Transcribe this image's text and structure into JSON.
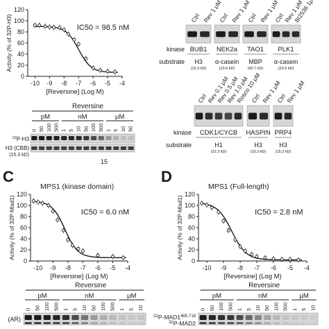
{
  "chart_data": [
    {
      "type": "scatter",
      "panel": "",
      "title": "",
      "ic50": "IC50 = 98.5 nM",
      "xlabel": "[Reversine] (Log M)",
      "ylabel": "Activity (% of 32P-H3)",
      "xlim": [
        -10.5,
        -4
      ],
      "ylim": [
        0,
        120
      ],
      "xticks": [
        -10,
        -9,
        -8,
        -7,
        -6,
        -5,
        -4
      ],
      "yticks": [
        0,
        20,
        40,
        60,
        80,
        100,
        120
      ],
      "x": [
        -10,
        -9.7,
        -9.3,
        -9,
        -8.7,
        -8.3,
        -8,
        -7.7,
        -7.3,
        -7,
        -6.5,
        -6,
        -5.5,
        -5,
        -4.5
      ],
      "y": [
        92,
        92,
        90,
        89,
        88,
        88,
        84,
        76,
        66,
        58,
        32,
        15,
        11,
        9,
        8
      ],
      "fit": {
        "top": 90,
        "bottom": 7,
        "log_ic50": -7.0,
        "hill": 1.0
      }
    },
    {
      "type": "scatter",
      "panel": "C",
      "title": "MPS1 (kinase domain)",
      "ic50": "IC50 = 6.0 nM",
      "xlabel": "[Reversine] (Log M)",
      "ylabel": "Activity (% of 32P-Mad1)",
      "xlim": [
        -10.5,
        -4
      ],
      "ylim": [
        0,
        120
      ],
      "xticks": [
        -10,
        -9,
        -8,
        -7,
        -6,
        -5,
        -4
      ],
      "yticks": [
        0,
        20,
        40,
        60,
        80,
        100,
        120
      ],
      "x": [
        -10.3,
        -10,
        -9.7,
        -9.3,
        -9,
        -8.7,
        -8.3,
        -8,
        -7.7,
        -7.3,
        -7,
        -6,
        -5,
        -4.3
      ],
      "y": [
        108,
        106,
        104,
        100,
        90,
        74,
        55,
        38,
        28,
        22,
        18,
        10,
        8,
        6
      ],
      "fit": {
        "top": 108,
        "bottom": 6,
        "log_ic50": -8.2,
        "hill": 1.0
      }
    },
    {
      "type": "scatter",
      "panel": "D",
      "title": "MPS1 (Full-length)",
      "ic50": "IC50 = 2.8 nM",
      "xlabel": "[Reversine] (Log M)",
      "ylabel": "Activity (% of 32P-Mad1)",
      "xlim": [
        -10.5,
        -4
      ],
      "ylim": [
        0,
        120
      ],
      "xticks": [
        -10,
        -9,
        -8,
        -7,
        -6,
        -5,
        -4
      ],
      "yticks": [
        0,
        20,
        40,
        60,
        80,
        100,
        120
      ],
      "x": [
        -10.3,
        -10,
        -9.7,
        -9.3,
        -9,
        -8.7,
        -8.3,
        -8,
        -7.7,
        -7.3,
        -7,
        -6.5,
        -6,
        -5.5,
        -5,
        -4.5
      ],
      "y": [
        104,
        101,
        96,
        88,
        72,
        55,
        38,
        26,
        18,
        12,
        8,
        6,
        4,
        3,
        3,
        2
      ],
      "fit": {
        "top": 105,
        "bottom": 2,
        "log_ic50": -8.5,
        "hill": 1.0
      }
    }
  ],
  "gel_a": {
    "group": "Reversine",
    "units": [
      "pM",
      "nM",
      "μM"
    ],
    "lanes": [
      "0",
      "50",
      "100",
      "500",
      "1",
      "5",
      "10",
      "50",
      "100",
      "500",
      "1",
      "5",
      "10",
      "50"
    ],
    "rows": [
      "32P-H3",
      "H3 (CBB)"
    ],
    "row_sub": "(15.3 kD)",
    "footer": "15",
    "intensity": [
      0.95,
      0.95,
      0.93,
      0.92,
      0.9,
      0.88,
      0.85,
      0.8,
      0.7,
      0.55,
      0.3,
      0.18,
      0.12,
      0.1
    ]
  },
  "kinase_top": {
    "label_kinase": "kinase",
    "label_substrate": "substrate",
    "blots": [
      {
        "lanes": [
          "Ctrl",
          "Rev 1 μM"
        ],
        "kinase": "BUB1",
        "substrate": "H3",
        "kd": "(15.3 kD)"
      },
      {
        "lanes": [
          "Ctrl",
          "Rev 1 μM"
        ],
        "kinase": "NEK2a",
        "substrate": "α-casein",
        "kd": "(23.6 kD)"
      },
      {
        "lanes": [
          "Ctrl",
          "Rev 1 μM"
        ],
        "kinase": "TAO1",
        "substrate": "MBP",
        "kd": "(42.7 kD)"
      },
      {
        "lanes": [
          "Ctrl",
          "Rev 1 μM",
          "BI2536 1μ"
        ],
        "kinase": "PLK1",
        "substrate": "α-casein",
        "kd": "(23.6 kD)"
      }
    ]
  },
  "kinase_bottom": {
    "label_kinase": "kinase",
    "label_substrate": "substrate",
    "blots": [
      {
        "lanes": [
          "Ctrl",
          "Rev 0.1 μM",
          "Rev 0.5 μM",
          "Rev 1.0 μM",
          "Rosco 10 μM"
        ],
        "kinase": "CDK1/CYCB",
        "substrate": "H1",
        "kd": "(22.3 kD)"
      },
      {
        "lanes": [
          "Ctrl",
          "Rev 1 μM"
        ],
        "kinase": "HASPIN",
        "substrate": "H3",
        "kd": "(15.3 kD)"
      },
      {
        "lanes": [
          "Ctrl",
          "Rev 1 μM"
        ],
        "kinase": "PRP4",
        "substrate": "H3",
        "kd": "(15.3 kD)"
      }
    ]
  },
  "gel_c": {
    "group": "Reversine",
    "units": [
      "pM",
      "nM",
      "μM"
    ],
    "lanes": [
      "0",
      "50",
      "100",
      "500",
      "1",
      "5",
      "10",
      "50",
      "100",
      "500",
      "1",
      "5",
      "10"
    ],
    "row_label": "(AR)",
    "intensity": [
      0.95,
      0.94,
      0.93,
      0.9,
      0.85,
      0.7,
      0.5,
      0.3,
      0.2,
      0.15,
      0.1,
      0.08,
      0.08
    ]
  },
  "gel_d": {
    "group": "Reversine",
    "units": [
      "pM",
      "nM",
      "μM"
    ],
    "lanes": [
      "0",
      "50",
      "100",
      "500",
      "1",
      "5",
      "10",
      "50",
      "100",
      "500",
      "1",
      "5",
      "10"
    ],
    "band_labels": [
      "32P-MAD1485-718",
      "32P-MAD2"
    ],
    "band_label_parts": [
      {
        "sup": "32",
        "main": "P-MAD1",
        "sup2": "485-718"
      },
      {
        "sup": "32",
        "main": "P-MAD2",
        "sup2": ""
      }
    ],
    "intensity": [
      0.95,
      0.9,
      0.85,
      0.8,
      0.7,
      0.55,
      0.4,
      0.25,
      0.15,
      0.1,
      0.08,
      0.06,
      0.05
    ]
  }
}
